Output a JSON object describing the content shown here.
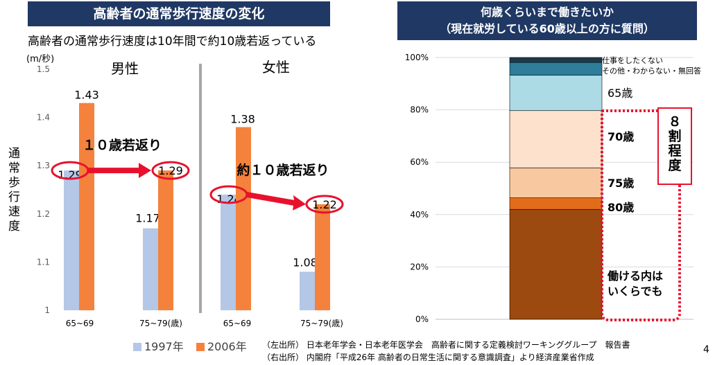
{
  "left": {
    "banner": "高齢者の通常歩行速度の変化",
    "subtitle": "高齢者の通常歩行速度は10年間で約10歳若返っている",
    "unit": "(m/秒)",
    "ylabel": "通常歩行速度",
    "source": "（左出所） 日本老年学会・日本老年医学会　高齢者に関する定義検討ワーキンググループ　報告書"
  },
  "right": {
    "banner_line1": "何歳くらいまで働きたいか",
    "banner_line2": "（現在就労している60歳以上の方に質問）",
    "source": "（右出所） 内閣府「平成26年 高齢者の日常生活に関する意識調査」より経済産業省作成"
  },
  "page_number": "4",
  "colors": {
    "banner": "#203864",
    "s1997": "#b4c7e7",
    "s2006": "#f4823c",
    "accent_red": "#e8112d"
  },
  "chart_data": [
    {
      "type": "bar",
      "ylim": [
        1,
        1.5
      ],
      "yticks": [
        "1",
        "1.1",
        "1.2",
        "1.3",
        "1.4",
        "1.5"
      ],
      "groups": [
        "男性",
        "女性"
      ],
      "categories": [
        "65~69",
        "75~79(歳)",
        "65~69",
        "75~79(歳)"
      ],
      "series": [
        {
          "name": "1997年",
          "values": [
            1.29,
            1.17,
            1.24,
            1.08
          ],
          "labels": [
            "1.29",
            "1.17",
            "1.24",
            "1.08"
          ]
        },
        {
          "name": "2006年",
          "values": [
            1.43,
            1.29,
            1.38,
            1.22
          ],
          "labels": [
            "1.43",
            "1.29",
            "1.38",
            "1.22"
          ]
        }
      ],
      "annotations": [
        "１０歳若返り",
        "約１０歳若返り"
      ]
    },
    {
      "type": "bar",
      "stacked": true,
      "ylim": [
        0,
        100
      ],
      "yticks": [
        "0%",
        "20%",
        "40%",
        "60%",
        "80%",
        "100%"
      ],
      "segments": [
        {
          "label": "働ける内は\nいくらでも",
          "value": 42.0,
          "color": "#9c4a0f"
        },
        {
          "label": "80歳",
          "value": 4.4,
          "color": "#e36c1b"
        },
        {
          "label": "75歳",
          "value": 11.4,
          "color": "#f8c9a1"
        },
        {
          "label": "70歳",
          "value": 21.9,
          "color": "#fde1cd"
        },
        {
          "label": "65歳",
          "value": 13.5,
          "color": "#acdbe6"
        },
        {
          "label": "その他・わからない・無回答",
          "value": 4.9,
          "color": "#2e7d99"
        },
        {
          "label": "仕事をしたくない",
          "value": 1.9,
          "color": "#1c3a4a"
        }
      ],
      "bracket_text": "８割程度"
    }
  ]
}
